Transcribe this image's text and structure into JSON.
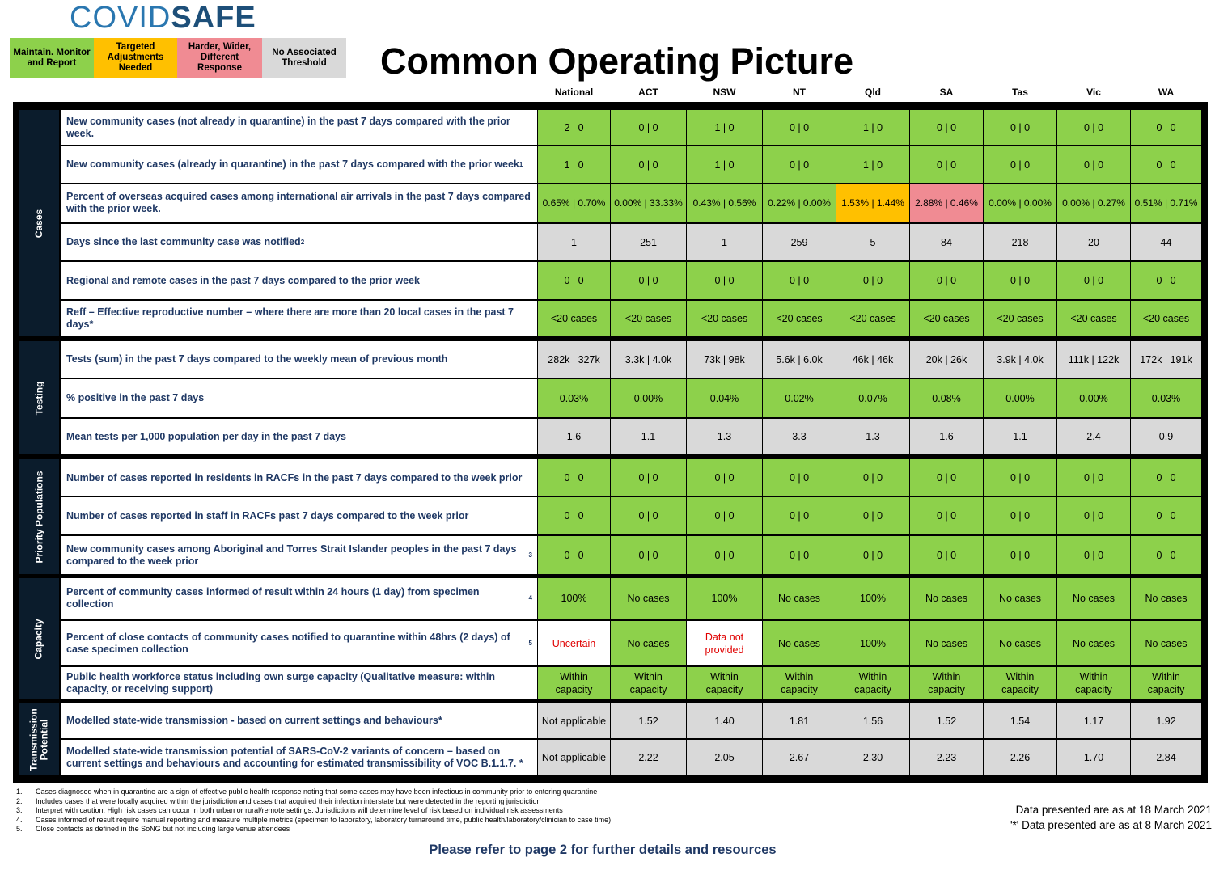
{
  "logo": {
    "part1": "COVID",
    "part2": "SAFE"
  },
  "legend": [
    {
      "label": "Maintain. Monitor and Report",
      "color": "#8dd14b"
    },
    {
      "label": "Targeted Adjustments Needed",
      "color": "#ffc000"
    },
    {
      "label": "Harder, Wider, Different Response",
      "color": "#f08b93"
    },
    {
      "label": "No Associated Threshold",
      "color": "#d9d9d9"
    }
  ],
  "title": "Common Operating Picture",
  "columns": [
    "National",
    "ACT",
    "NSW",
    "NT",
    "Qld",
    "SA",
    "Tas",
    "Vic",
    "WA"
  ],
  "colors": {
    "green": "#8dd14b",
    "amber": "#ffc000",
    "red": "#f08b93",
    "grey": "#d9d9d9",
    "white": "#ffffff",
    "navy": "#0b1c2c",
    "label_text": "#1f3864",
    "uncertain_text": "#e00000"
  },
  "sections": [
    {
      "name": "Cases",
      "rows": [
        {
          "label": "New community cases (not already in quarantine) in the past 7 days compared with the prior week.",
          "sup": "",
          "values": [
            "2 | 0",
            "0 | 0",
            "1 | 0",
            "0 | 0",
            "1 | 0",
            "0 | 0",
            "0 | 0",
            "0 | 0",
            "0 | 0"
          ],
          "status": [
            "green",
            "green",
            "green",
            "green",
            "green",
            "green",
            "green",
            "green",
            "green"
          ]
        },
        {
          "label": "New community cases (already in quarantine) in the past 7 days compared with the prior week",
          "sup": "1",
          "values": [
            "1 | 0",
            "0 | 0",
            "1 | 0",
            "0 | 0",
            "1 | 0",
            "0 | 0",
            "0 | 0",
            "0 | 0",
            "0 | 0"
          ],
          "status": [
            "green",
            "green",
            "green",
            "green",
            "green",
            "green",
            "green",
            "green",
            "green"
          ]
        },
        {
          "label": "Percent of overseas acquired cases among international air arrivals in the past 7 days compared with the prior week.",
          "sup": "",
          "values": [
            "0.65% | 0.70%",
            "0.00% | 33.33%",
            "0.43% | 0.56%",
            "0.22% | 0.00%",
            "1.53% | 1.44%",
            "2.88% | 0.46%",
            "0.00% | 0.00%",
            "0.00% | 0.27%",
            "0.51% | 0.71%"
          ],
          "status": [
            "green",
            "green",
            "green",
            "green",
            "amber",
            "red",
            "green",
            "green",
            "green"
          ]
        },
        {
          "label": "Days since the last community case was notified",
          "sup": "2",
          "values": [
            "1",
            "251",
            "1",
            "259",
            "5",
            "84",
            "218",
            "20",
            "44"
          ],
          "status": [
            "grey",
            "grey",
            "grey",
            "grey",
            "grey",
            "grey",
            "grey",
            "grey",
            "grey"
          ]
        },
        {
          "label": "Regional and remote cases in the past 7 days compared to the prior week",
          "sup": "",
          "values": [
            "0 | 0",
            "0 | 0",
            "0 | 0",
            "0 | 0",
            "0 | 0",
            "0 | 0",
            "0 | 0",
            "0 | 0",
            "0 | 0"
          ],
          "status": [
            "green",
            "green",
            "green",
            "green",
            "green",
            "green",
            "green",
            "green",
            "green"
          ]
        },
        {
          "label": "Reff – Effective reproductive number – where there are more than 20 local cases in the past 7 days*",
          "sup": "",
          "values": [
            "<20 cases",
            "<20 cases",
            "<20 cases",
            "<20 cases",
            "<20 cases",
            "<20 cases",
            "<20 cases",
            "<20 cases",
            "<20 cases"
          ],
          "status": [
            "green",
            "green",
            "green",
            "green",
            "green",
            "green",
            "green",
            "green",
            "green"
          ]
        }
      ]
    },
    {
      "name": "Testing",
      "rows": [
        {
          "label": "Tests (sum) in the past 7 days compared to the weekly mean of previous month",
          "sup": "",
          "values": [
            "282k | 327k",
            "3.3k | 4.0k",
            "73k | 98k",
            "5.6k | 6.0k",
            "46k | 46k",
            "20k | 26k",
            "3.9k | 4.0k",
            "111k | 122k",
            "172k | 191k"
          ],
          "status": [
            "grey",
            "grey",
            "grey",
            "grey",
            "grey",
            "grey",
            "grey",
            "grey",
            "grey"
          ]
        },
        {
          "label": "% positive in the past 7 days",
          "sup": "",
          "values": [
            "0.03%",
            "0.00%",
            "0.04%",
            "0.02%",
            "0.07%",
            "0.08%",
            "0.00%",
            "0.00%",
            "0.03%"
          ],
          "status": [
            "green",
            "green",
            "green",
            "green",
            "green",
            "green",
            "green",
            "green",
            "green"
          ]
        },
        {
          "label": "Mean tests per 1,000 population per day in the past 7 days",
          "sup": "",
          "values": [
            "1.6",
            "1.1",
            "1.3",
            "3.3",
            "1.3",
            "1.6",
            "1.1",
            "2.4",
            "0.9"
          ],
          "status": [
            "grey",
            "grey",
            "grey",
            "grey",
            "grey",
            "grey",
            "grey",
            "grey",
            "grey"
          ]
        }
      ]
    },
    {
      "name": "Priority Populations",
      "rows": [
        {
          "label": "Number of cases reported in residents in RACFs in the past 7 days compared to the week prior",
          "sup": "",
          "values": [
            "0 | 0",
            "0 | 0",
            "0 | 0",
            "0 | 0",
            "0 | 0",
            "0 | 0",
            "0 | 0",
            "0 | 0",
            "0 | 0"
          ],
          "status": [
            "green",
            "green",
            "green",
            "green",
            "green",
            "green",
            "green",
            "green",
            "green"
          ]
        },
        {
          "label": "Number of cases reported in staff in RACFs past 7 days compared to the week prior",
          "sup": "",
          "values": [
            "0 | 0",
            "0 | 0",
            "0 | 0",
            "0 | 0",
            "0 | 0",
            "0 | 0",
            "0 | 0",
            "0 | 0",
            "0 | 0"
          ],
          "status": [
            "green",
            "green",
            "green",
            "green",
            "green",
            "green",
            "green",
            "green",
            "green"
          ]
        },
        {
          "label": "New community cases among Aboriginal and Torres Strait Islander peoples in the past 7 days compared to the week prior",
          "sup": "3",
          "values": [
            "0 | 0",
            "0 | 0",
            "0 | 0",
            "0 | 0",
            "0 | 0",
            "0 | 0",
            "0 | 0",
            "0 | 0",
            "0 | 0"
          ],
          "status": [
            "green",
            "green",
            "green",
            "green",
            "green",
            "green",
            "green",
            "green",
            "green"
          ]
        }
      ]
    },
    {
      "name": "Capacity",
      "rows": [
        {
          "label": "Percent of community cases informed of result within 24 hours (1 day) from specimen collection",
          "sup": "4",
          "values": [
            "100%",
            "No cases",
            "100%",
            "No cases",
            "100%",
            "No cases",
            "No cases",
            "No cases",
            "No cases"
          ],
          "status": [
            "green",
            "green",
            "green",
            "green",
            "green",
            "green",
            "green",
            "green",
            "green"
          ]
        },
        {
          "label": "Percent of close contacts of community cases notified to quarantine within 48hrs (2 days) of case specimen collection",
          "sup": "5",
          "values": [
            "Uncertain",
            "No cases",
            "Data not provided",
            "No cases",
            "100%",
            "No cases",
            "No cases",
            "No cases",
            "No cases"
          ],
          "status": [
            "white",
            "green",
            "white",
            "green",
            "green",
            "green",
            "green",
            "green",
            "green"
          ]
        },
        {
          "label": "Public health workforce status including own surge capacity (Qualitative measure: within capacity, or receiving support)",
          "sup": "",
          "values": [
            "Within capacity",
            "Within capacity",
            "Within capacity",
            "Within capacity",
            "Within capacity",
            "Within capacity",
            "Within capacity",
            "Within capacity",
            "Within capacity"
          ],
          "status": [
            "green",
            "green",
            "green",
            "green",
            "green",
            "green",
            "green",
            "green",
            "green"
          ]
        }
      ]
    },
    {
      "name": "Transmission Potential",
      "rows": [
        {
          "label": "Modelled state-wide transmission - based on current settings and behaviours*",
          "sup": "",
          "values": [
            "Not applicable",
            "1.52",
            "1.40",
            "1.81",
            "1.56",
            "1.52",
            "1.54",
            "1.17",
            "1.92"
          ],
          "status": [
            "grey",
            "grey",
            "grey",
            "grey",
            "grey",
            "grey",
            "grey",
            "grey",
            "grey"
          ]
        },
        {
          "label": "Modelled state-wide transmission potential of SARS-CoV-2 variants of concern – based on current settings and behaviours and accounting for estimated transmissibility of VOC B.1.1.7. *",
          "sup": "",
          "values": [
            "Not applicable",
            "2.22",
            "2.05",
            "2.67",
            "2.30",
            "2.23",
            "2.26",
            "1.70",
            "2.84"
          ],
          "status": [
            "grey",
            "grey",
            "grey",
            "grey",
            "grey",
            "grey",
            "grey",
            "grey",
            "grey"
          ]
        }
      ]
    }
  ],
  "footnotes": [
    {
      "n": "1.",
      "text": "Cases diagnosed when in quarantine are a sign of effective public health response noting that some cases may have been infectious in community prior to entering quarantine"
    },
    {
      "n": "2.",
      "text": "Includes cases that were locally acquired within the jurisdiction and cases that acquired their infection interstate but were detected in the reporting jurisdiction"
    },
    {
      "n": "3.",
      "text": "Interpret with caution. High risk cases can occur in both urban or rural/remote settings. Jurisdictions will determine level of risk based on individual risk assessments"
    },
    {
      "n": "4.",
      "text": "Cases informed of result require manual reporting and measure multiple metrics (specimen to laboratory, laboratory turnaround time, public health/laboratory/clinician to case time)"
    },
    {
      "n": "5.",
      "text": "Close contacts as defined in the SoNG but not including large venue attendees"
    }
  ],
  "notes": {
    "date1": "Data presented are as at 18 March 2021",
    "date2": "'*' Data presented are as at 8 March 2021"
  },
  "refer": "Please refer to page 2 for further details and resources"
}
